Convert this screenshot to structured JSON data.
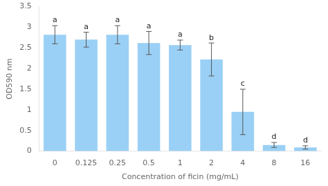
{
  "chart_data": {
    "type": "bar",
    "categories": [
      "0",
      "0.125",
      "0.25",
      "0.5",
      "1",
      "2",
      "4",
      "8",
      "16"
    ],
    "values": [
      2.82,
      2.7,
      2.82,
      2.62,
      2.57,
      2.22,
      0.95,
      0.15,
      0.09
    ],
    "errors": [
      0.22,
      0.18,
      0.22,
      0.28,
      0.12,
      0.4,
      0.55,
      0.06,
      0.04
    ],
    "annotations": [
      "a",
      "a",
      "a",
      "a",
      "a",
      "b",
      "c",
      "d",
      "d"
    ],
    "xlabel": "Concentration of ficin (mg/mL)",
    "ylabel": "OD590 nm",
    "ylim": [
      0,
      3.5
    ],
    "yticks": [
      0,
      0.5,
      1,
      1.5,
      2,
      2.5,
      3,
      3.5
    ],
    "grid": false
  }
}
